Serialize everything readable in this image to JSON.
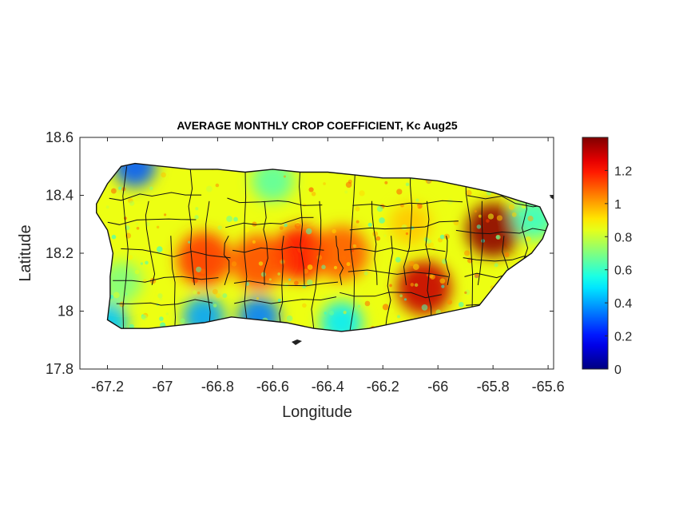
{
  "chart_data": {
    "type": "heatmap",
    "title": "AVERAGE MONTHLY CROP COEFFICIENT, Kc Aug25",
    "xlabel": "Longitude",
    "ylabel": "Latitude",
    "xlim": [
      -67.3,
      -65.58
    ],
    "ylim": [
      17.8,
      18.6
    ],
    "xticks": [
      -67.2,
      -67,
      -66.8,
      -66.6,
      -66.4,
      -66.2,
      -66,
      -65.8,
      -65.6
    ],
    "xtick_labels": [
      "-67.2",
      "-67",
      "-66.8",
      "-66.6",
      "-66.4",
      "-66.2",
      "-66",
      "-65.8",
      "-65.6"
    ],
    "yticks": [
      17.8,
      18,
      18.2,
      18.4,
      18.6
    ],
    "ytick_labels": [
      "17.8",
      "18",
      "18.2",
      "18.4",
      "18.6"
    ],
    "colorbar": {
      "colormap": "jet",
      "range": [
        0,
        1.4
      ],
      "ticks": [
        0,
        0.2,
        0.4,
        0.6,
        0.8,
        1,
        1.2
      ],
      "tick_labels": [
        "0",
        "0.2",
        "0.4",
        "0.6",
        "0.8",
        "1",
        "1.2"
      ]
    },
    "grid": false,
    "coastline_lonlat": [
      [
        -67.24,
        18.37
      ],
      [
        -67.2,
        18.44
      ],
      [
        -67.15,
        18.5
      ],
      [
        -67.1,
        18.51
      ],
      [
        -67.0,
        18.5
      ],
      [
        -66.9,
        18.49
      ],
      [
        -66.8,
        18.49
      ],
      [
        -66.7,
        18.48
      ],
      [
        -66.6,
        18.49
      ],
      [
        -66.5,
        18.48
      ],
      [
        -66.4,
        18.48
      ],
      [
        -66.3,
        18.47
      ],
      [
        -66.2,
        18.46
      ],
      [
        -66.1,
        18.46
      ],
      [
        -66.0,
        18.45
      ],
      [
        -65.9,
        18.43
      ],
      [
        -65.8,
        18.41
      ],
      [
        -65.7,
        18.38
      ],
      [
        -65.63,
        18.36
      ],
      [
        -65.6,
        18.3
      ],
      [
        -65.62,
        18.25
      ],
      [
        -65.66,
        18.2
      ],
      [
        -65.75,
        18.14
      ],
      [
        -65.8,
        18.08
      ],
      [
        -65.85,
        18.02
      ],
      [
        -65.95,
        18.0
      ],
      [
        -66.05,
        17.98
      ],
      [
        -66.15,
        17.96
      ],
      [
        -66.25,
        17.94
      ],
      [
        -66.35,
        17.93
      ],
      [
        -66.45,
        17.94
      ],
      [
        -66.55,
        17.96
      ],
      [
        -66.65,
        17.97
      ],
      [
        -66.75,
        17.98
      ],
      [
        -66.85,
        17.96
      ],
      [
        -66.95,
        17.95
      ],
      [
        -67.05,
        17.94
      ],
      [
        -67.15,
        17.94
      ],
      [
        -67.2,
        17.97
      ],
      [
        -67.19,
        18.05
      ],
      [
        -67.19,
        18.12
      ],
      [
        -67.18,
        18.2
      ],
      [
        -67.2,
        18.28
      ],
      [
        -67.24,
        18.34
      ]
    ],
    "hotspots": [
      {
        "lon": -65.8,
        "lat": 18.28,
        "value": 1.38
      },
      {
        "lon": -66.05,
        "lat": 18.08,
        "value": 1.3
      },
      {
        "lon": -66.5,
        "lat": 18.2,
        "value": 1.2
      },
      {
        "lon": -66.85,
        "lat": 18.18,
        "value": 1.15
      },
      {
        "lon": -66.65,
        "lat": 18.17,
        "value": 1.12
      },
      {
        "lon": -66.35,
        "lat": 18.2,
        "value": 1.1
      },
      {
        "lon": -66.1,
        "lat": 18.3,
        "value": 0.95
      },
      {
        "lon": -66.85,
        "lat": 17.98,
        "value": 0.4
      },
      {
        "lon": -66.65,
        "lat": 17.98,
        "value": 0.35
      },
      {
        "lon": -67.1,
        "lat": 18.5,
        "value": 0.3
      },
      {
        "lon": -67.2,
        "lat": 17.96,
        "value": 0.45
      },
      {
        "lon": -66.35,
        "lat": 17.96,
        "value": 0.5
      },
      {
        "lon": -66.6,
        "lat": 18.45,
        "value": 0.65
      },
      {
        "lon": -67.15,
        "lat": 18.1,
        "value": 0.7
      },
      {
        "lon": -65.65,
        "lat": 18.32,
        "value": 0.6
      }
    ],
    "background_value": 0.85
  }
}
